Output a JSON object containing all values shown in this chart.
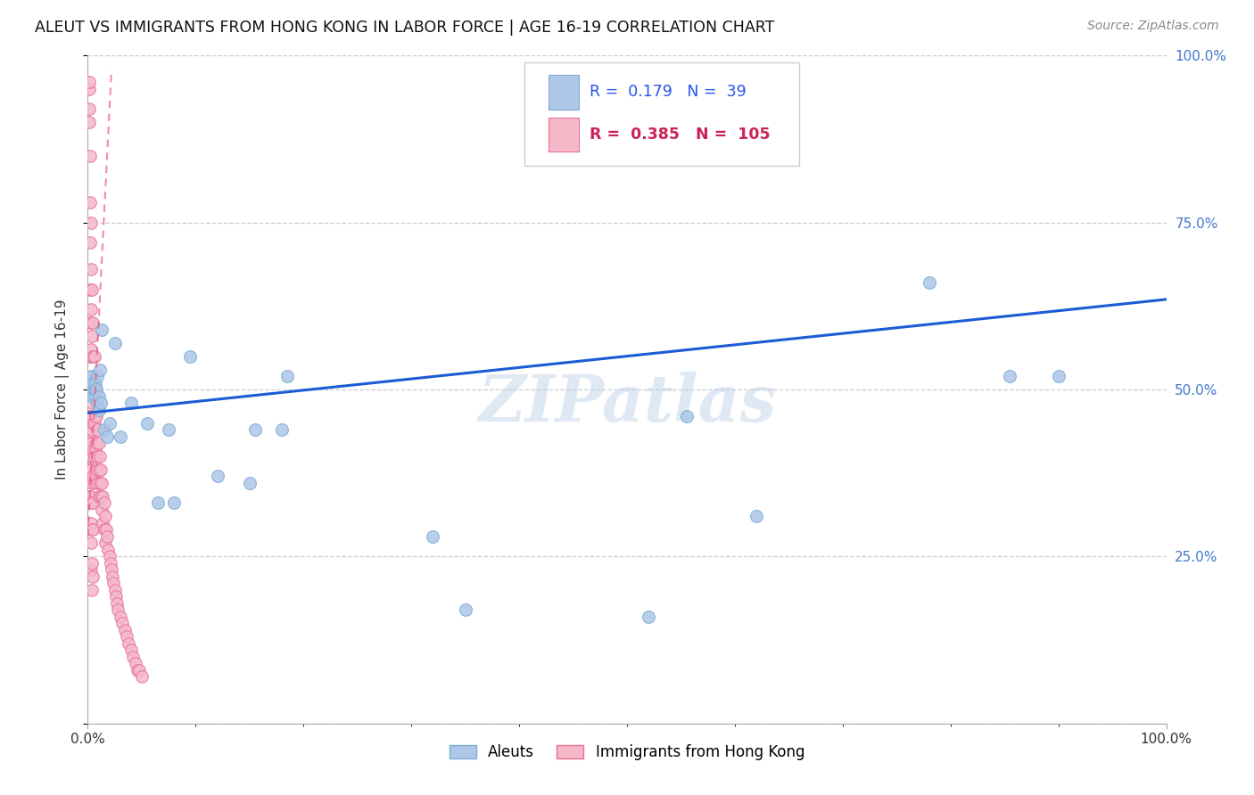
{
  "title": "ALEUT VS IMMIGRANTS FROM HONG KONG IN LABOR FORCE | AGE 16-19 CORRELATION CHART",
  "source": "Source: ZipAtlas.com",
  "ylabel": "In Labor Force | Age 16-19",
  "xlim": [
    0.0,
    1.0
  ],
  "ylim": [
    0.0,
    1.0
  ],
  "background_color": "#ffffff",
  "grid_color": "#c8c8c8",
  "watermark_text": "ZIPatlas",
  "legend_R_aleut": "0.179",
  "legend_N_aleut": "39",
  "legend_R_hk": "0.385",
  "legend_N_hk": "105",
  "aleut_color": "#aec6e8",
  "aleut_edge_color": "#7aadd4",
  "hk_color": "#f5b8c8",
  "hk_edge_color": "#e8709a",
  "trendline_aleut_color": "#1a5cd6",
  "trendline_hk_color": "#e8507a",
  "aleut_x": [
    0.003,
    0.004,
    0.005,
    0.005,
    0.006,
    0.007,
    0.007,
    0.008,
    0.009,
    0.009,
    0.01,
    0.01,
    0.011,
    0.012,
    0.013,
    0.015,
    0.018,
    0.02,
    0.025,
    0.03,
    0.04,
    0.055,
    0.065,
    0.075,
    0.08,
    0.095,
    0.12,
    0.15,
    0.155,
    0.18,
    0.185,
    0.32,
    0.35,
    0.52,
    0.555,
    0.62,
    0.78,
    0.855,
    0.9
  ],
  "aleut_y": [
    0.5,
    0.52,
    0.49,
    0.51,
    0.5,
    0.51,
    0.49,
    0.5,
    0.48,
    0.52,
    0.47,
    0.49,
    0.53,
    0.48,
    0.59,
    0.44,
    0.43,
    0.45,
    0.57,
    0.43,
    0.48,
    0.45,
    0.33,
    0.44,
    0.33,
    0.55,
    0.37,
    0.36,
    0.44,
    0.44,
    0.52,
    0.28,
    0.17,
    0.16,
    0.46,
    0.31,
    0.66,
    0.52,
    0.52
  ],
  "hk_x_cluster": [
    0.001,
    0.001,
    0.001,
    0.001,
    0.001,
    0.001,
    0.001,
    0.001,
    0.001,
    0.002,
    0.002,
    0.002,
    0.002,
    0.002,
    0.002,
    0.002,
    0.002,
    0.002,
    0.002,
    0.002,
    0.003,
    0.003,
    0.003,
    0.003,
    0.003,
    0.003,
    0.003,
    0.003,
    0.003,
    0.003,
    0.004,
    0.004,
    0.004,
    0.004,
    0.004,
    0.004,
    0.004,
    0.004,
    0.004,
    0.005,
    0.005,
    0.005,
    0.005,
    0.005,
    0.005,
    0.005,
    0.005,
    0.006,
    0.006,
    0.006,
    0.006,
    0.006,
    0.007,
    0.007,
    0.007,
    0.007,
    0.008,
    0.008,
    0.008,
    0.009,
    0.009,
    0.009,
    0.01,
    0.01,
    0.01,
    0.011,
    0.011,
    0.012,
    0.012,
    0.013,
    0.013,
    0.014,
    0.014,
    0.015,
    0.015,
    0.016,
    0.016,
    0.017,
    0.018,
    0.019,
    0.02,
    0.021,
    0.022,
    0.023,
    0.024,
    0.025,
    0.026,
    0.027,
    0.028,
    0.03,
    0.032,
    0.034,
    0.036,
    0.038,
    0.04,
    0.042,
    0.044,
    0.046,
    0.048,
    0.05,
    0.003,
    0.003,
    0.004,
    0.004,
    0.005
  ],
  "hk_y_cluster": [
    0.95,
    0.96,
    0.92,
    0.9,
    0.55,
    0.5,
    0.46,
    0.43,
    0.4,
    0.85,
    0.78,
    0.72,
    0.65,
    0.6,
    0.55,
    0.5,
    0.46,
    0.42,
    0.38,
    0.34,
    0.75,
    0.68,
    0.62,
    0.56,
    0.5,
    0.46,
    0.42,
    0.38,
    0.34,
    0.3,
    0.65,
    0.58,
    0.52,
    0.48,
    0.44,
    0.4,
    0.36,
    0.33,
    0.29,
    0.6,
    0.55,
    0.5,
    0.45,
    0.41,
    0.37,
    0.33,
    0.29,
    0.55,
    0.5,
    0.45,
    0.4,
    0.36,
    0.5,
    0.46,
    0.41,
    0.37,
    0.46,
    0.42,
    0.38,
    0.44,
    0.4,
    0.36,
    0.42,
    0.38,
    0.34,
    0.4,
    0.36,
    0.38,
    0.34,
    0.36,
    0.32,
    0.34,
    0.3,
    0.33,
    0.29,
    0.31,
    0.27,
    0.29,
    0.28,
    0.26,
    0.25,
    0.24,
    0.23,
    0.22,
    0.21,
    0.2,
    0.19,
    0.18,
    0.17,
    0.16,
    0.15,
    0.14,
    0.13,
    0.12,
    0.11,
    0.1,
    0.09,
    0.08,
    0.08,
    0.07,
    0.27,
    0.23,
    0.24,
    0.2,
    0.22
  ],
  "trendline_aleut_x0": 0.0,
  "trendline_aleut_x1": 1.0,
  "trendline_aleut_y0": 0.465,
  "trendline_aleut_y1": 0.635,
  "trendline_hk_x0": 0.0,
  "trendline_hk_x1": 0.022,
  "trendline_hk_y0": 0.28,
  "trendline_hk_y1": 0.98
}
